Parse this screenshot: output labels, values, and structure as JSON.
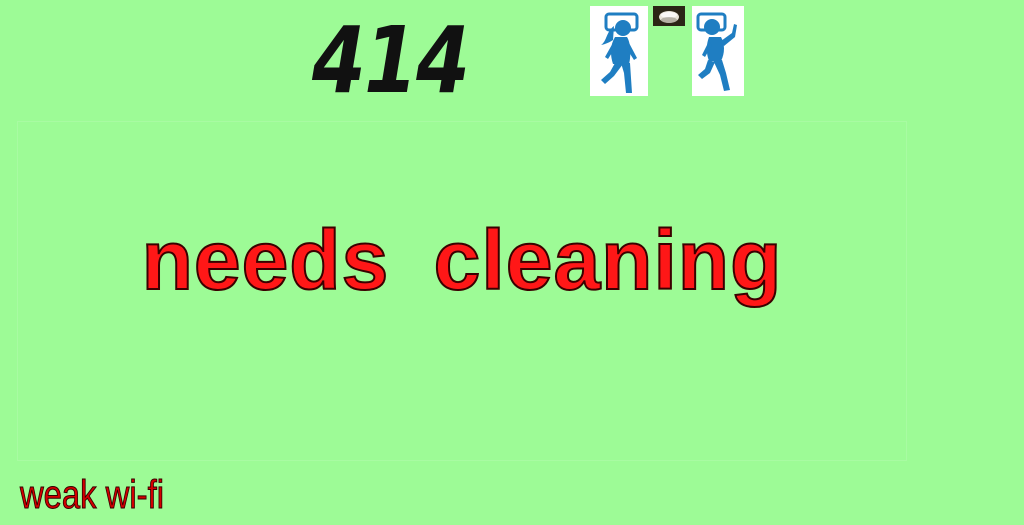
{
  "room": {
    "number": "414"
  },
  "icons": {
    "female": "female-sleeping-icon",
    "male": "male-sleeping-icon",
    "sensor": "camera-sensor-icon"
  },
  "status": {
    "message": "needs cleaning",
    "warning": "weak wi-fi"
  },
  "colors": {
    "background": "#9dfb96",
    "room_number": "#111111",
    "status": "#ff1717",
    "warning": "#d30000",
    "person": "#1f7ec2",
    "sensor": "#2b2516"
  }
}
